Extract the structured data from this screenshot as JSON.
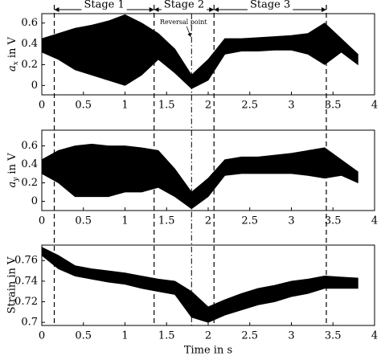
{
  "stages": [
    {
      "label": "Stage 1",
      "start": 0.15,
      "end": 1.35
    },
    {
      "label": "Stage 2",
      "start": 1.35,
      "end": 2.07
    },
    {
      "label": "Stage 3",
      "start": 2.07,
      "end": 3.42
    }
  ],
  "reversal": {
    "label": "Reversal point",
    "x": 1.8
  },
  "xlabel": "Time in s",
  "chart_data": [
    {
      "type": "band",
      "ylabel": {
        "symbol": "a",
        "subscript": "x",
        "unit": "in V"
      },
      "color": "#000000",
      "x": [
        0,
        0.2,
        0.4,
        0.6,
        0.8,
        1.0,
        1.2,
        1.4,
        1.6,
        1.8,
        2.0,
        2.2,
        2.4,
        2.6,
        2.8,
        3.0,
        3.2,
        3.4,
        3.6,
        3.8
      ],
      "upper": [
        0.45,
        0.5,
        0.55,
        0.58,
        0.62,
        0.68,
        0.6,
        0.5,
        0.35,
        0.1,
        0.25,
        0.45,
        0.45,
        0.46,
        0.47,
        0.48,
        0.5,
        0.6,
        0.45,
        0.3
      ],
      "lower": [
        0.32,
        0.25,
        0.15,
        0.1,
        0.05,
        0.0,
        0.1,
        0.25,
        0.12,
        -0.03,
        0.05,
        0.3,
        0.33,
        0.33,
        0.34,
        0.34,
        0.3,
        0.2,
        0.32,
        0.2
      ],
      "xlim": [
        0,
        4
      ],
      "xticks": [
        0,
        0.5,
        1,
        1.5,
        2,
        2.5,
        3,
        3.5,
        4
      ],
      "ylim": [
        -0.09,
        0.69
      ],
      "yticks": [
        0,
        0.2,
        0.4,
        0.6
      ]
    },
    {
      "type": "band",
      "ylabel": {
        "symbol": "a",
        "subscript": "y",
        "unit": "in V"
      },
      "color": "#000000",
      "x": [
        0,
        0.2,
        0.4,
        0.6,
        0.8,
        1.0,
        1.2,
        1.4,
        1.6,
        1.8,
        2.0,
        2.2,
        2.4,
        2.6,
        2.8,
        3.0,
        3.2,
        3.4,
        3.6,
        3.8
      ],
      "upper": [
        0.45,
        0.55,
        0.6,
        0.62,
        0.6,
        0.6,
        0.58,
        0.55,
        0.35,
        0.1,
        0.25,
        0.45,
        0.48,
        0.48,
        0.5,
        0.52,
        0.55,
        0.58,
        0.45,
        0.32
      ],
      "lower": [
        0.3,
        0.2,
        0.05,
        0.05,
        0.05,
        0.1,
        0.1,
        0.15,
        0.05,
        -0.08,
        0.05,
        0.28,
        0.3,
        0.3,
        0.3,
        0.3,
        0.28,
        0.25,
        0.28,
        0.2
      ],
      "xlim": [
        0,
        4
      ],
      "xticks": [
        0,
        0.5,
        1,
        1.5,
        2,
        2.5,
        3,
        3.5,
        4
      ],
      "ylim": [
        -0.1,
        0.77
      ],
      "yticks": [
        0,
        0.2,
        0.4,
        0.6
      ]
    },
    {
      "type": "band",
      "ylabel": {
        "text": "Strain in V"
      },
      "color": "#000000",
      "x": [
        0,
        0.2,
        0.4,
        0.6,
        0.8,
        1.0,
        1.2,
        1.4,
        1.6,
        1.8,
        2.0,
        2.2,
        2.4,
        2.6,
        2.8,
        3.0,
        3.2,
        3.4,
        3.6,
        3.8
      ],
      "upper": [
        0.773,
        0.765,
        0.755,
        0.752,
        0.75,
        0.748,
        0.745,
        0.742,
        0.74,
        0.73,
        0.715,
        0.722,
        0.728,
        0.733,
        0.736,
        0.74,
        0.742,
        0.745,
        0.744,
        0.743
      ],
      "lower": [
        0.765,
        0.752,
        0.745,
        0.742,
        0.739,
        0.737,
        0.733,
        0.73,
        0.727,
        0.705,
        0.7,
        0.707,
        0.712,
        0.717,
        0.72,
        0.725,
        0.728,
        0.733,
        0.733,
        0.733
      ],
      "xlim": [
        0,
        4
      ],
      "xticks": [
        0,
        0.5,
        1,
        1.5,
        2,
        2.5,
        3,
        3.5,
        4
      ],
      "ylim": [
        0.697,
        0.775
      ],
      "yticks": [
        0.7,
        0.72,
        0.74,
        0.76
      ]
    }
  ]
}
